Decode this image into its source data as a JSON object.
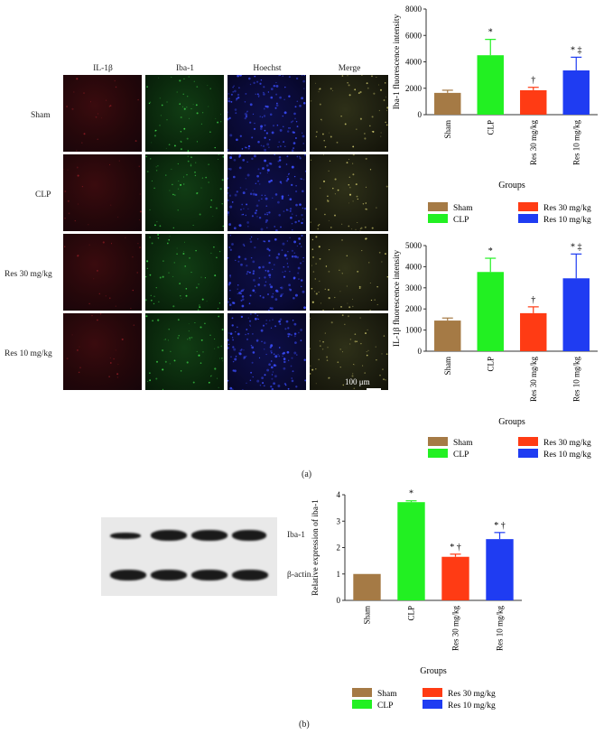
{
  "panel_a": {
    "label": "(a)",
    "columns": [
      "IL-1β",
      "Iba-1",
      "Hoechst",
      "Merge"
    ],
    "rows": [
      "Sham",
      "CLP",
      "Res 30 mg/kg",
      "Res 10 mg/kg"
    ],
    "scale_bar": "100 μm"
  },
  "panel_b": {
    "label": "(b)",
    "blot_labels": [
      "Iba-1",
      "β-actin"
    ]
  },
  "colors": {
    "Sham": "#a57a45",
    "CLP": "#22f022",
    "Res 30 mg/kg": "#ff3b14",
    "Res 10 mg/kg": "#1f3cf2"
  },
  "chart_data": [
    {
      "type": "bar",
      "categories": [
        "Sham",
        "CLP",
        "Res 30 mg/kg",
        "Res 10 mg/kg"
      ],
      "values": [
        1650,
        4500,
        1850,
        3350
      ],
      "errors": [
        200,
        1200,
        220,
        1000
      ],
      "significance": [
        "",
        "*",
        "†",
        "* ‡"
      ],
      "title": "",
      "xlabel": "Groups",
      "ylabel": "Iba-1 fluorescence intensity",
      "ylim": [
        0,
        8000
      ],
      "yticks": [
        0,
        2000,
        4000,
        6000,
        8000
      ],
      "legend": [
        "Sham",
        "CLP",
        "Res 30 mg/kg",
        "Res 10 mg/kg"
      ]
    },
    {
      "type": "bar",
      "categories": [
        "Sham",
        "CLP",
        "Res 30 mg/kg",
        "Res 10 mg/kg"
      ],
      "values": [
        1450,
        3750,
        1800,
        3450
      ],
      "errors": [
        120,
        650,
        300,
        1150
      ],
      "significance": [
        "",
        "*",
        "†",
        "* ‡"
      ],
      "title": "",
      "xlabel": "Groups",
      "ylabel": "IL-1β fluorescence intensity",
      "ylim": [
        0,
        5000
      ],
      "yticks": [
        0,
        1000,
        2000,
        3000,
        4000,
        5000
      ],
      "legend": [
        "Sham",
        "CLP",
        "Res 30 mg/kg",
        "Res 10 mg/kg"
      ]
    },
    {
      "type": "bar",
      "categories": [
        "Sham",
        "CLP",
        "Res 30 mg/kg",
        "Res 10 mg/kg"
      ],
      "values": [
        1.0,
        3.72,
        1.65,
        2.32
      ],
      "errors": [
        0,
        0.05,
        0.1,
        0.25
      ],
      "significance": [
        "",
        "*",
        "* †",
        "* †"
      ],
      "title": "",
      "xlabel": "Groups",
      "ylabel": "Relative expression of iba-1",
      "ylim": [
        0,
        4
      ],
      "yticks": [
        0,
        1,
        2,
        3,
        4
      ],
      "legend": [
        "Sham",
        "CLP",
        "Res 30 mg/kg",
        "Res 10 mg/kg"
      ]
    }
  ]
}
